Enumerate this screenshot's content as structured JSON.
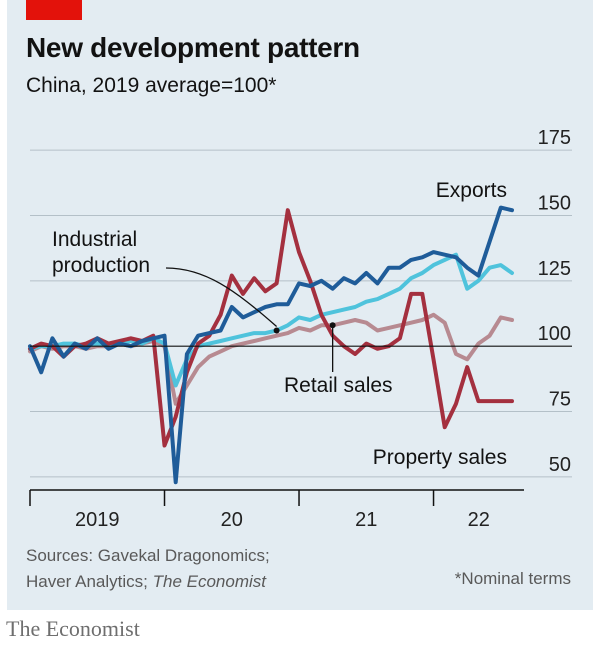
{
  "header": {
    "title": "New development pattern",
    "subtitle": "China, 2019 average=100*"
  },
  "footer": {
    "sources_line1": "Sources: Gavekal Dragonomics;",
    "sources_line2_plain": "Haver Analytics; ",
    "sources_line2_italic": "The Economist",
    "footnote": "*Nominal terms",
    "publisher": "The Economist"
  },
  "colors": {
    "exports": "#1f5c99",
    "industrial_production": "#4fc3dc",
    "retail_sales": "#b78a91",
    "property_sales": "#a4303f",
    "brand": "#e3120b"
  },
  "chart_data": {
    "type": "line",
    "title": "New development pattern",
    "subtitle": "China, 2019 average=100*",
    "x_tick_labels": [
      "2019",
      "20",
      "21",
      "22"
    ],
    "x_range": [
      "2019-01",
      "2022-08"
    ],
    "y_ticks": [
      50,
      75,
      100,
      125,
      150,
      175
    ],
    "ylim": [
      45,
      180
    ],
    "y_axis_side": "right",
    "baseline": 100,
    "grid": true,
    "legend": "direct labels on chart",
    "series": [
      {
        "name": "Exports",
        "color_key": "exports",
        "x": [
          "2019-01",
          "2019-02",
          "2019-03",
          "2019-04",
          "2019-05",
          "2019-06",
          "2019-07",
          "2019-08",
          "2019-09",
          "2019-10",
          "2019-11",
          "2019-12",
          "2020-01",
          "2020-02",
          "2020-03",
          "2020-04",
          "2020-05",
          "2020-06",
          "2020-07",
          "2020-08",
          "2020-09",
          "2020-10",
          "2020-11",
          "2020-12",
          "2021-01",
          "2021-02",
          "2021-03",
          "2021-04",
          "2021-05",
          "2021-06",
          "2021-07",
          "2021-08",
          "2021-09",
          "2021-10",
          "2021-11",
          "2021-12",
          "2022-01",
          "2022-02",
          "2022-03",
          "2022-04",
          "2022-05",
          "2022-06",
          "2022-07",
          "2022-08"
        ],
        "values": [
          100,
          90,
          103,
          96,
          101,
          99,
          103,
          99,
          101,
          100,
          102,
          103,
          104,
          48,
          97,
          104,
          105,
          106,
          115,
          111,
          113,
          115,
          116,
          116,
          124,
          123,
          125,
          122,
          126,
          124,
          128,
          124,
          130,
          130,
          133,
          134,
          136,
          135,
          134,
          130,
          127,
          140,
          153,
          152
        ]
      },
      {
        "name": "Industrial production",
        "color_key": "industrial_production",
        "x": [
          "2019-01",
          "2019-02",
          "2019-03",
          "2019-04",
          "2019-05",
          "2019-06",
          "2019-07",
          "2019-08",
          "2019-09",
          "2019-10",
          "2019-11",
          "2019-12",
          "2020-01",
          "2020-02",
          "2020-03",
          "2020-04",
          "2020-05",
          "2020-06",
          "2020-07",
          "2020-08",
          "2020-09",
          "2020-10",
          "2020-11",
          "2020-12",
          "2021-01",
          "2021-02",
          "2021-03",
          "2021-04",
          "2021-05",
          "2021-06",
          "2021-07",
          "2021-08",
          "2021-09",
          "2021-10",
          "2021-11",
          "2021-12",
          "2022-01",
          "2022-02",
          "2022-03",
          "2022-04",
          "2022-05",
          "2022-06",
          "2022-07",
          "2022-08"
        ],
        "values": [
          99,
          100,
          100,
          101,
          101,
          100,
          101,
          100,
          101,
          102,
          101,
          103,
          101,
          85,
          95,
          100,
          101,
          102,
          103,
          104,
          105,
          105,
          106,
          108,
          111,
          110,
          112,
          113,
          114,
          115,
          117,
          118,
          120,
          122,
          126,
          128,
          131,
          133,
          135,
          122,
          125,
          130,
          131,
          128
        ]
      },
      {
        "name": "Retail sales",
        "color_key": "retail_sales",
        "x": [
          "2019-01",
          "2019-02",
          "2019-03",
          "2019-04",
          "2019-05",
          "2019-06",
          "2019-07",
          "2019-08",
          "2019-09",
          "2019-10",
          "2019-11",
          "2019-12",
          "2020-01",
          "2020-02",
          "2020-03",
          "2020-04",
          "2020-05",
          "2020-06",
          "2020-07",
          "2020-08",
          "2020-09",
          "2020-10",
          "2020-11",
          "2020-12",
          "2021-01",
          "2021-02",
          "2021-03",
          "2021-04",
          "2021-05",
          "2021-06",
          "2021-07",
          "2021-08",
          "2021-09",
          "2021-10",
          "2021-11",
          "2021-12",
          "2022-01",
          "2022-02",
          "2022-03",
          "2022-04",
          "2022-05",
          "2022-06",
          "2022-07",
          "2022-08"
        ],
        "values": [
          98,
          100,
          99,
          100,
          100,
          99,
          100,
          100,
          101,
          100,
          101,
          102,
          100,
          78,
          85,
          92,
          96,
          98,
          100,
          101,
          102,
          103,
          104,
          105,
          107,
          106,
          108,
          108,
          109,
          110,
          109,
          106,
          107,
          108,
          109,
          110,
          112,
          109,
          97,
          95,
          101,
          104,
          111,
          110
        ]
      },
      {
        "name": "Property sales",
        "color_key": "property_sales",
        "x": [
          "2019-01",
          "2019-02",
          "2019-03",
          "2019-04",
          "2019-05",
          "2019-06",
          "2019-07",
          "2019-08",
          "2019-09",
          "2019-10",
          "2019-11",
          "2019-12",
          "2020-01",
          "2020-02",
          "2020-03",
          "2020-04",
          "2020-05",
          "2020-06",
          "2020-07",
          "2020-08",
          "2020-09",
          "2020-10",
          "2020-11",
          "2020-12",
          "2021-01",
          "2021-02",
          "2021-03",
          "2021-04",
          "2021-05",
          "2021-06",
          "2021-07",
          "2021-08",
          "2021-09",
          "2021-10",
          "2021-11",
          "2021-12",
          "2022-01",
          "2022-02",
          "2022-03",
          "2022-04",
          "2022-05",
          "2022-06",
          "2022-07",
          "2022-08"
        ],
        "values": [
          99,
          101,
          100,
          96,
          100,
          101,
          103,
          101,
          102,
          103,
          102,
          104,
          62,
          73,
          90,
          101,
          104,
          112,
          127,
          120,
          126,
          121,
          124,
          152,
          136,
          125,
          112,
          104,
          100,
          97,
          101,
          99,
          100,
          103,
          120,
          120,
          95,
          69,
          78,
          92,
          79,
          79,
          79,
          79
        ]
      }
    ],
    "annotations": [
      {
        "text_lines": [
          "Industrial",
          "production"
        ],
        "series": "Industrial production",
        "points_to": "2020-11",
        "leader": "curved"
      },
      {
        "text_lines": [
          "Retail sales"
        ],
        "series": "Retail sales",
        "points_to": "2021-04",
        "leader": "straight"
      },
      {
        "text_lines": [
          "Exports"
        ],
        "series": "Exports"
      },
      {
        "text_lines": [
          "Property sales"
        ],
        "series": "Property sales"
      }
    ]
  }
}
